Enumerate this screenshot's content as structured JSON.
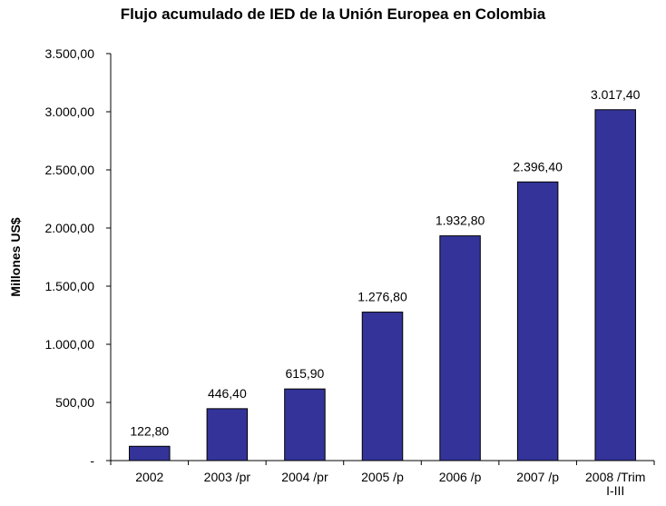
{
  "chart_data": {
    "type": "bar",
    "title": "Flujo acumulado de IED de la Unión Europea en Colombia",
    "xlabel": "",
    "ylabel": "Millones US$",
    "categories": [
      "2002",
      "2003 /pr",
      "2004 /pr",
      "2005 /p",
      "2006 /p",
      "2007 /p",
      "2008 /Trim I-III"
    ],
    "category_lines": [
      [
        "2002"
      ],
      [
        "2003 /pr"
      ],
      [
        "2004 /pr"
      ],
      [
        "2005 /p"
      ],
      [
        "2006 /p"
      ],
      [
        "2007 /p"
      ],
      [
        "2008 /Trim",
        "I-III"
      ]
    ],
    "values": [
      122.8,
      446.4,
      615.9,
      1276.8,
      1932.8,
      2396.4,
      3017.4
    ],
    "data_labels": [
      "122,80",
      "446,40",
      "615,90",
      "1.276,80",
      "1.932,80",
      "2.396,40",
      "3.017,40"
    ],
    "ylim": [
      0,
      3500
    ],
    "yticks": [
      0,
      500,
      1000,
      1500,
      2000,
      2500,
      3000,
      3500
    ],
    "ytick_labels": [
      "-",
      "500,00",
      "1.000,00",
      "1.500,00",
      "2.000,00",
      "2.500,00",
      "3.000,00",
      "3.500,00"
    ],
    "grid": false,
    "legend": "none",
    "bar_color": "#333399"
  }
}
